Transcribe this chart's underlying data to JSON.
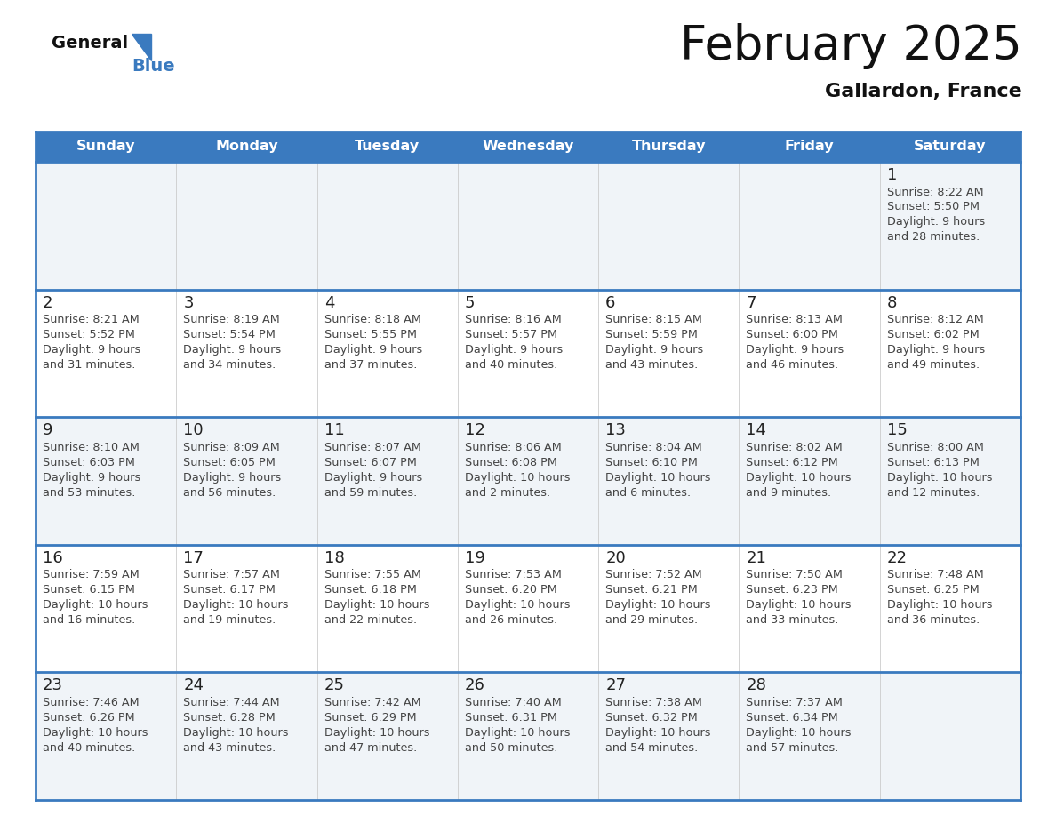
{
  "title": "February 2025",
  "subtitle": "Gallardon, France",
  "days_of_week": [
    "Sunday",
    "Monday",
    "Tuesday",
    "Wednesday",
    "Thursday",
    "Friday",
    "Saturday"
  ],
  "header_bg": "#3a7abf",
  "header_text": "#ffffff",
  "cell_bg": "#f0f4f8",
  "cell_bg_white": "#ffffff",
  "border_color": "#3a7abf",
  "text_color": "#444444",
  "calendar_data": [
    [
      null,
      null,
      null,
      null,
      null,
      null,
      {
        "day": 1,
        "sunrise": "8:22 AM",
        "sunset": "5:50 PM",
        "daylight": "9 hours",
        "daylight2": "and 28 minutes."
      }
    ],
    [
      {
        "day": 2,
        "sunrise": "8:21 AM",
        "sunset": "5:52 PM",
        "daylight": "9 hours",
        "daylight2": "and 31 minutes."
      },
      {
        "day": 3,
        "sunrise": "8:19 AM",
        "sunset": "5:54 PM",
        "daylight": "9 hours",
        "daylight2": "and 34 minutes."
      },
      {
        "day": 4,
        "sunrise": "8:18 AM",
        "sunset": "5:55 PM",
        "daylight": "9 hours",
        "daylight2": "and 37 minutes."
      },
      {
        "day": 5,
        "sunrise": "8:16 AM",
        "sunset": "5:57 PM",
        "daylight": "9 hours",
        "daylight2": "and 40 minutes."
      },
      {
        "day": 6,
        "sunrise": "8:15 AM",
        "sunset": "5:59 PM",
        "daylight": "9 hours",
        "daylight2": "and 43 minutes."
      },
      {
        "day": 7,
        "sunrise": "8:13 AM",
        "sunset": "6:00 PM",
        "daylight": "9 hours",
        "daylight2": "and 46 minutes."
      },
      {
        "day": 8,
        "sunrise": "8:12 AM",
        "sunset": "6:02 PM",
        "daylight": "9 hours",
        "daylight2": "and 49 minutes."
      }
    ],
    [
      {
        "day": 9,
        "sunrise": "8:10 AM",
        "sunset": "6:03 PM",
        "daylight": "9 hours",
        "daylight2": "and 53 minutes."
      },
      {
        "day": 10,
        "sunrise": "8:09 AM",
        "sunset": "6:05 PM",
        "daylight": "9 hours",
        "daylight2": "and 56 minutes."
      },
      {
        "day": 11,
        "sunrise": "8:07 AM",
        "sunset": "6:07 PM",
        "daylight": "9 hours",
        "daylight2": "and 59 minutes."
      },
      {
        "day": 12,
        "sunrise": "8:06 AM",
        "sunset": "6:08 PM",
        "daylight": "10 hours",
        "daylight2": "and 2 minutes."
      },
      {
        "day": 13,
        "sunrise": "8:04 AM",
        "sunset": "6:10 PM",
        "daylight": "10 hours",
        "daylight2": "and 6 minutes."
      },
      {
        "day": 14,
        "sunrise": "8:02 AM",
        "sunset": "6:12 PM",
        "daylight": "10 hours",
        "daylight2": "and 9 minutes."
      },
      {
        "day": 15,
        "sunrise": "8:00 AM",
        "sunset": "6:13 PM",
        "daylight": "10 hours",
        "daylight2": "and 12 minutes."
      }
    ],
    [
      {
        "day": 16,
        "sunrise": "7:59 AM",
        "sunset": "6:15 PM",
        "daylight": "10 hours",
        "daylight2": "and 16 minutes."
      },
      {
        "day": 17,
        "sunrise": "7:57 AM",
        "sunset": "6:17 PM",
        "daylight": "10 hours",
        "daylight2": "and 19 minutes."
      },
      {
        "day": 18,
        "sunrise": "7:55 AM",
        "sunset": "6:18 PM",
        "daylight": "10 hours",
        "daylight2": "and 22 minutes."
      },
      {
        "day": 19,
        "sunrise": "7:53 AM",
        "sunset": "6:20 PM",
        "daylight": "10 hours",
        "daylight2": "and 26 minutes."
      },
      {
        "day": 20,
        "sunrise": "7:52 AM",
        "sunset": "6:21 PM",
        "daylight": "10 hours",
        "daylight2": "and 29 minutes."
      },
      {
        "day": 21,
        "sunrise": "7:50 AM",
        "sunset": "6:23 PM",
        "daylight": "10 hours",
        "daylight2": "and 33 minutes."
      },
      {
        "day": 22,
        "sunrise": "7:48 AM",
        "sunset": "6:25 PM",
        "daylight": "10 hours",
        "daylight2": "and 36 minutes."
      }
    ],
    [
      {
        "day": 23,
        "sunrise": "7:46 AM",
        "sunset": "6:26 PM",
        "daylight": "10 hours",
        "daylight2": "and 40 minutes."
      },
      {
        "day": 24,
        "sunrise": "7:44 AM",
        "sunset": "6:28 PM",
        "daylight": "10 hours",
        "daylight2": "and 43 minutes."
      },
      {
        "day": 25,
        "sunrise": "7:42 AM",
        "sunset": "6:29 PM",
        "daylight": "10 hours",
        "daylight2": "and 47 minutes."
      },
      {
        "day": 26,
        "sunrise": "7:40 AM",
        "sunset": "6:31 PM",
        "daylight": "10 hours",
        "daylight2": "and 50 minutes."
      },
      {
        "day": 27,
        "sunrise": "7:38 AM",
        "sunset": "6:32 PM",
        "daylight": "10 hours",
        "daylight2": "and 54 minutes."
      },
      {
        "day": 28,
        "sunrise": "7:37 AM",
        "sunset": "6:34 PM",
        "daylight": "10 hours",
        "daylight2": "and 57 minutes."
      },
      null
    ]
  ]
}
